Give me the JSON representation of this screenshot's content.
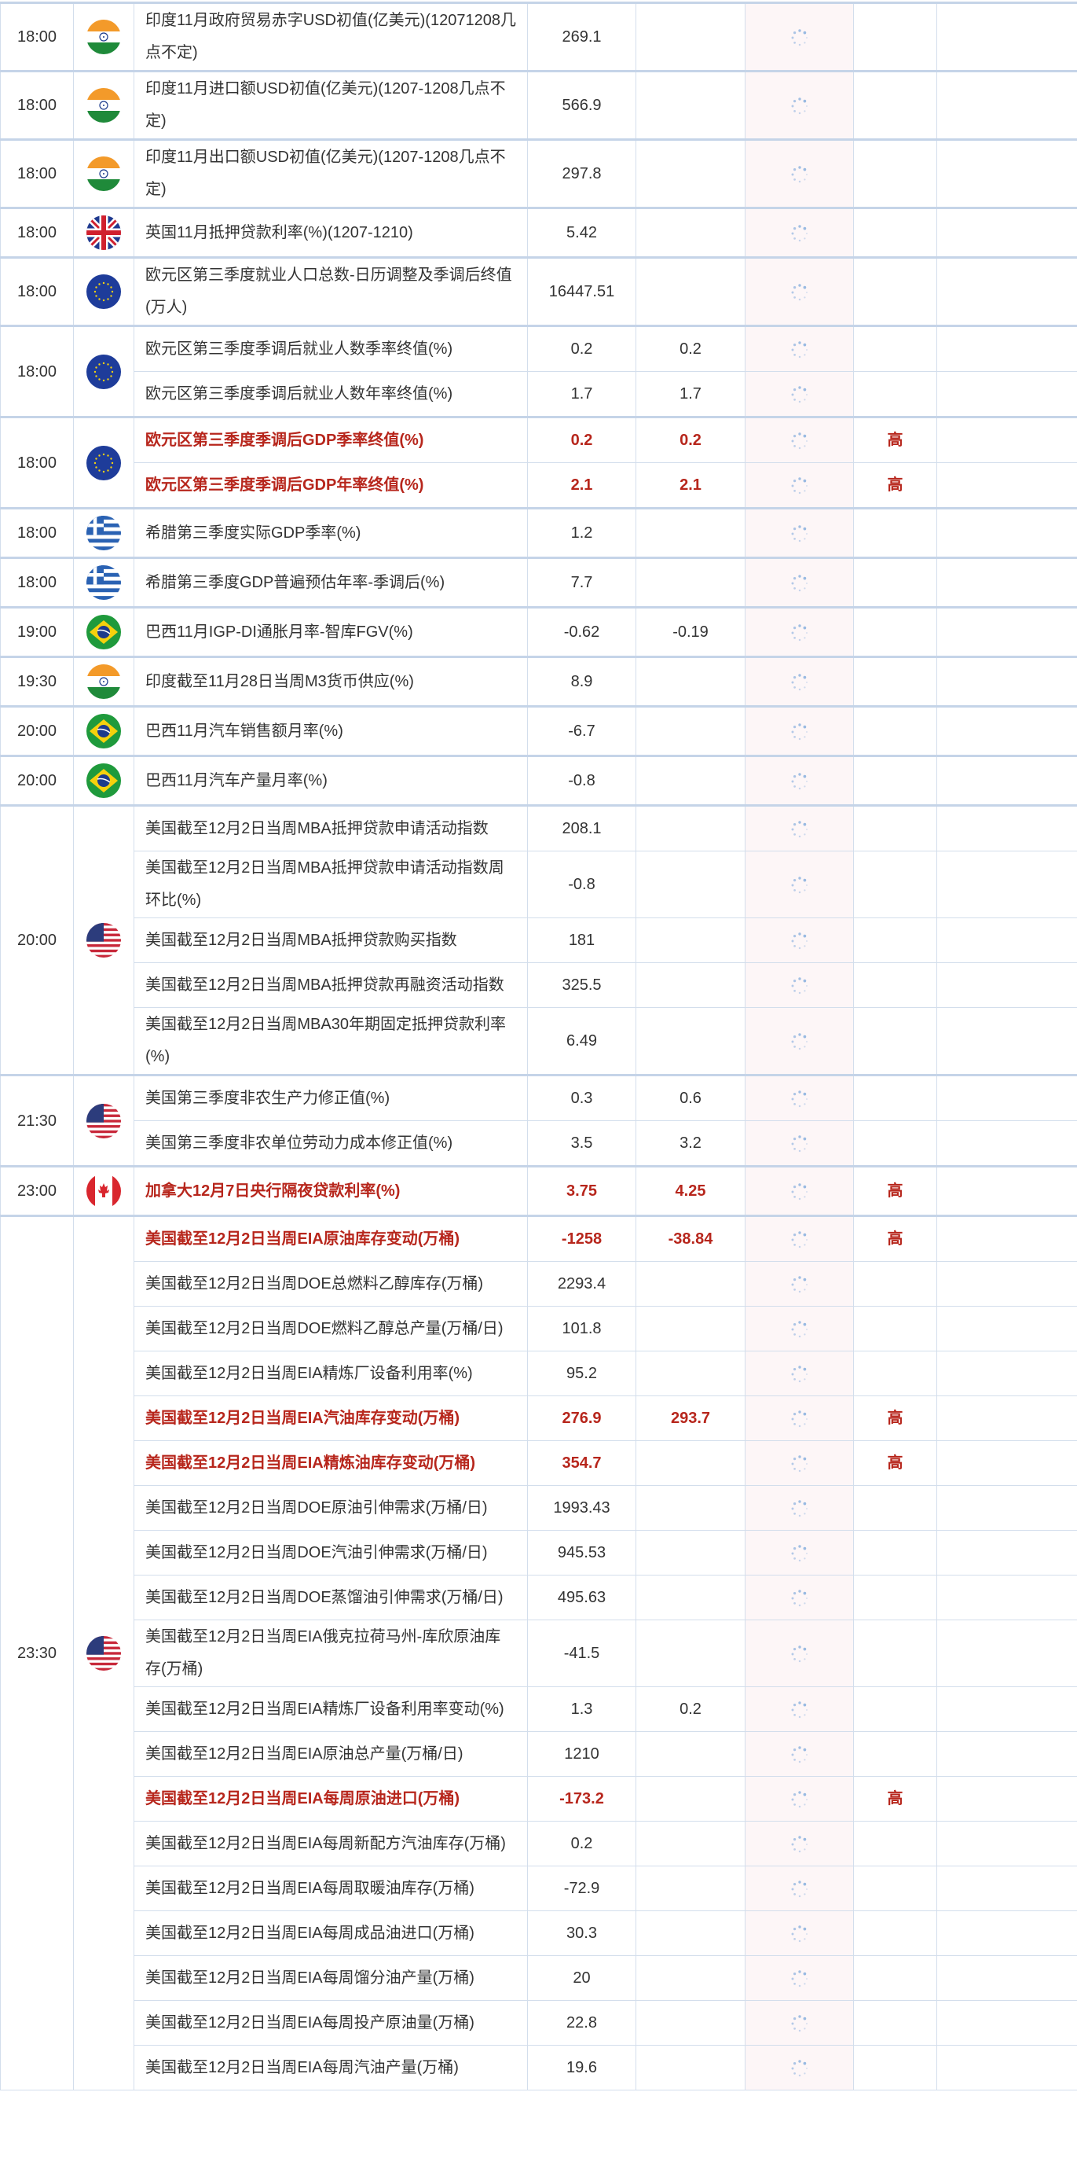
{
  "colors": {
    "important_text": "#b7261c",
    "actual_bg": "#fdf6f7",
    "border": "#d3deec",
    "spinner": "#8fb3df"
  },
  "actual_icon": "loading-spinner-icon",
  "groups": [
    {
      "time": "18:00",
      "country": "india",
      "rows": [
        {
          "name": "印度11月政府贸易赤字USD初值(亿美元)(12071208几点不定)",
          "previous": "269.1",
          "forecast": "",
          "importance": "",
          "important": false
        }
      ]
    },
    {
      "time": "18:00",
      "country": "india",
      "rows": [
        {
          "name": "印度11月进口额USD初值(亿美元)(1207-1208几点不定)",
          "previous": "566.9",
          "forecast": "",
          "importance": "",
          "important": false
        }
      ]
    },
    {
      "time": "18:00",
      "country": "india",
      "rows": [
        {
          "name": "印度11月出口额USD初值(亿美元)(1207-1208几点不定)",
          "previous": "297.8",
          "forecast": "",
          "importance": "",
          "important": false
        }
      ]
    },
    {
      "time": "18:00",
      "country": "uk",
      "rows": [
        {
          "name": "英国11月抵押贷款利率(%)(1207-1210)",
          "previous": "5.42",
          "forecast": "",
          "importance": "",
          "important": false
        }
      ]
    },
    {
      "time": "18:00",
      "country": "eu",
      "rows": [
        {
          "name": "欧元区第三季度就业人口总数-日历调整及季调后终值(万人)",
          "previous": "16447.51",
          "forecast": "",
          "importance": "",
          "important": false
        }
      ]
    },
    {
      "time": "18:00",
      "country": "eu",
      "rows": [
        {
          "name": "欧元区第三季度季调后就业人数季率终值(%)",
          "previous": "0.2",
          "forecast": "0.2",
          "importance": "",
          "important": false
        },
        {
          "name": "欧元区第三季度季调后就业人数年率终值(%)",
          "previous": "1.7",
          "forecast": "1.7",
          "importance": "",
          "important": false
        }
      ]
    },
    {
      "time": "18:00",
      "country": "eu",
      "rows": [
        {
          "name": "欧元区第三季度季调后GDP季率终值(%)",
          "previous": "0.2",
          "forecast": "0.2",
          "importance": "高",
          "important": true
        },
        {
          "name": "欧元区第三季度季调后GDP年率终值(%)",
          "previous": "2.1",
          "forecast": "2.1",
          "importance": "高",
          "important": true
        }
      ]
    },
    {
      "time": "18:00",
      "country": "greece",
      "rows": [
        {
          "name": "希腊第三季度实际GDP季率(%)",
          "previous": "1.2",
          "forecast": "",
          "importance": "",
          "important": false
        }
      ]
    },
    {
      "time": "18:00",
      "country": "greece",
      "rows": [
        {
          "name": "希腊第三季度GDP普遍预估年率-季调后(%)",
          "previous": "7.7",
          "forecast": "",
          "importance": "",
          "important": false
        }
      ]
    },
    {
      "time": "19:00",
      "country": "brazil",
      "rows": [
        {
          "name": "巴西11月IGP-DI通胀月率-智库FGV(%)",
          "previous": "-0.62",
          "forecast": "-0.19",
          "importance": "",
          "important": false
        }
      ]
    },
    {
      "time": "19:30",
      "country": "india",
      "rows": [
        {
          "name": "印度截至11月28日当周M3货币供应(%)",
          "previous": "8.9",
          "forecast": "",
          "importance": "",
          "important": false
        }
      ]
    },
    {
      "time": "20:00",
      "country": "brazil",
      "rows": [
        {
          "name": "巴西11月汽车销售额月率(%)",
          "previous": "-6.7",
          "forecast": "",
          "importance": "",
          "important": false
        }
      ]
    },
    {
      "time": "20:00",
      "country": "brazil",
      "rows": [
        {
          "name": "巴西11月汽车产量月率(%)",
          "previous": "-0.8",
          "forecast": "",
          "importance": "",
          "important": false
        }
      ]
    },
    {
      "time": "20:00",
      "country": "usa",
      "rows": [
        {
          "name": "美国截至12月2日当周MBA抵押贷款申请活动指数",
          "previous": "208.1",
          "forecast": "",
          "importance": "",
          "important": false
        },
        {
          "name": "美国截至12月2日当周MBA抵押贷款申请活动指数周环比(%)",
          "previous": "-0.8",
          "forecast": "",
          "importance": "",
          "important": false
        },
        {
          "name": "美国截至12月2日当周MBA抵押贷款购买指数",
          "previous": "181",
          "forecast": "",
          "importance": "",
          "important": false
        },
        {
          "name": "美国截至12月2日当周MBA抵押贷款再融资活动指数",
          "previous": "325.5",
          "forecast": "",
          "importance": "",
          "important": false
        },
        {
          "name": "美国截至12月2日当周MBA30年期固定抵押贷款利率(%)",
          "previous": "6.49",
          "forecast": "",
          "importance": "",
          "important": false
        }
      ]
    },
    {
      "time": "21:30",
      "country": "usa",
      "rows": [
        {
          "name": "美国第三季度非农生产力修正值(%)",
          "previous": "0.3",
          "forecast": "0.6",
          "importance": "",
          "important": false
        },
        {
          "name": "美国第三季度非农单位劳动力成本修正值(%)",
          "previous": "3.5",
          "forecast": "3.2",
          "importance": "",
          "important": false
        }
      ]
    },
    {
      "time": "23:00",
      "country": "canada",
      "rows": [
        {
          "name": "加拿大12月7日央行隔夜贷款利率(%)",
          "previous": "3.75",
          "forecast": "4.25",
          "importance": "高",
          "important": true
        }
      ]
    },
    {
      "time": "23:30",
      "country": "usa",
      "rows": [
        {
          "name": "美国截至12月2日当周EIA原油库存变动(万桶)",
          "previous": "-1258",
          "forecast": "-38.84",
          "importance": "高",
          "important": true
        },
        {
          "name": "美国截至12月2日当周DOE总燃料乙醇库存(万桶)",
          "previous": "2293.4",
          "forecast": "",
          "importance": "",
          "important": false
        },
        {
          "name": "美国截至12月2日当周DOE燃料乙醇总产量(万桶/日)",
          "previous": "101.8",
          "forecast": "",
          "importance": "",
          "important": false
        },
        {
          "name": "美国截至12月2日当周EIA精炼厂设备利用率(%)",
          "previous": "95.2",
          "forecast": "",
          "importance": "",
          "important": false
        },
        {
          "name": "美国截至12月2日当周EIA汽油库存变动(万桶)",
          "previous": "276.9",
          "forecast": "293.7",
          "importance": "高",
          "important": true
        },
        {
          "name": "美国截至12月2日当周EIA精炼油库存变动(万桶)",
          "previous": "354.7",
          "forecast": "",
          "importance": "高",
          "important": true
        },
        {
          "name": "美国截至12月2日当周DOE原油引伸需求(万桶/日)",
          "previous": "1993.43",
          "forecast": "",
          "importance": "",
          "important": false
        },
        {
          "name": "美国截至12月2日当周DOE汽油引伸需求(万桶/日)",
          "previous": "945.53",
          "forecast": "",
          "importance": "",
          "important": false
        },
        {
          "name": "美国截至12月2日当周DOE蒸馏油引伸需求(万桶/日)",
          "previous": "495.63",
          "forecast": "",
          "importance": "",
          "important": false
        },
        {
          "name": "美国截至12月2日当周EIA俄克拉荷马州-库欣原油库存(万桶)",
          "previous": "-41.5",
          "forecast": "",
          "importance": "",
          "important": false
        },
        {
          "name": "美国截至12月2日当周EIA精炼厂设备利用率变动(%)",
          "previous": "1.3",
          "forecast": "0.2",
          "importance": "",
          "important": false
        },
        {
          "name": "美国截至12月2日当周EIA原油总产量(万桶/日)",
          "previous": "1210",
          "forecast": "",
          "importance": "",
          "important": false
        },
        {
          "name": "美国截至12月2日当周EIA每周原油进口(万桶)",
          "previous": "-173.2",
          "forecast": "",
          "importance": "高",
          "important": true
        },
        {
          "name": "美国截至12月2日当周EIA每周新配方汽油库存(万桶)",
          "previous": "0.2",
          "forecast": "",
          "importance": "",
          "important": false
        },
        {
          "name": "美国截至12月2日当周EIA每周取暖油库存(万桶)",
          "previous": "-72.9",
          "forecast": "",
          "importance": "",
          "important": false
        },
        {
          "name": "美国截至12月2日当周EIA每周成品油进口(万桶)",
          "previous": "30.3",
          "forecast": "",
          "importance": "",
          "important": false
        },
        {
          "name": "美国截至12月2日当周EIA每周馏分油产量(万桶)",
          "previous": "20",
          "forecast": "",
          "importance": "",
          "important": false
        },
        {
          "name": "美国截至12月2日当周EIA每周投产原油量(万桶)",
          "previous": "22.8",
          "forecast": "",
          "importance": "",
          "important": false
        },
        {
          "name": "美国截至12月2日当周EIA每周汽油产量(万桶)",
          "previous": "19.6",
          "forecast": "",
          "importance": "",
          "important": false
        }
      ]
    }
  ]
}
